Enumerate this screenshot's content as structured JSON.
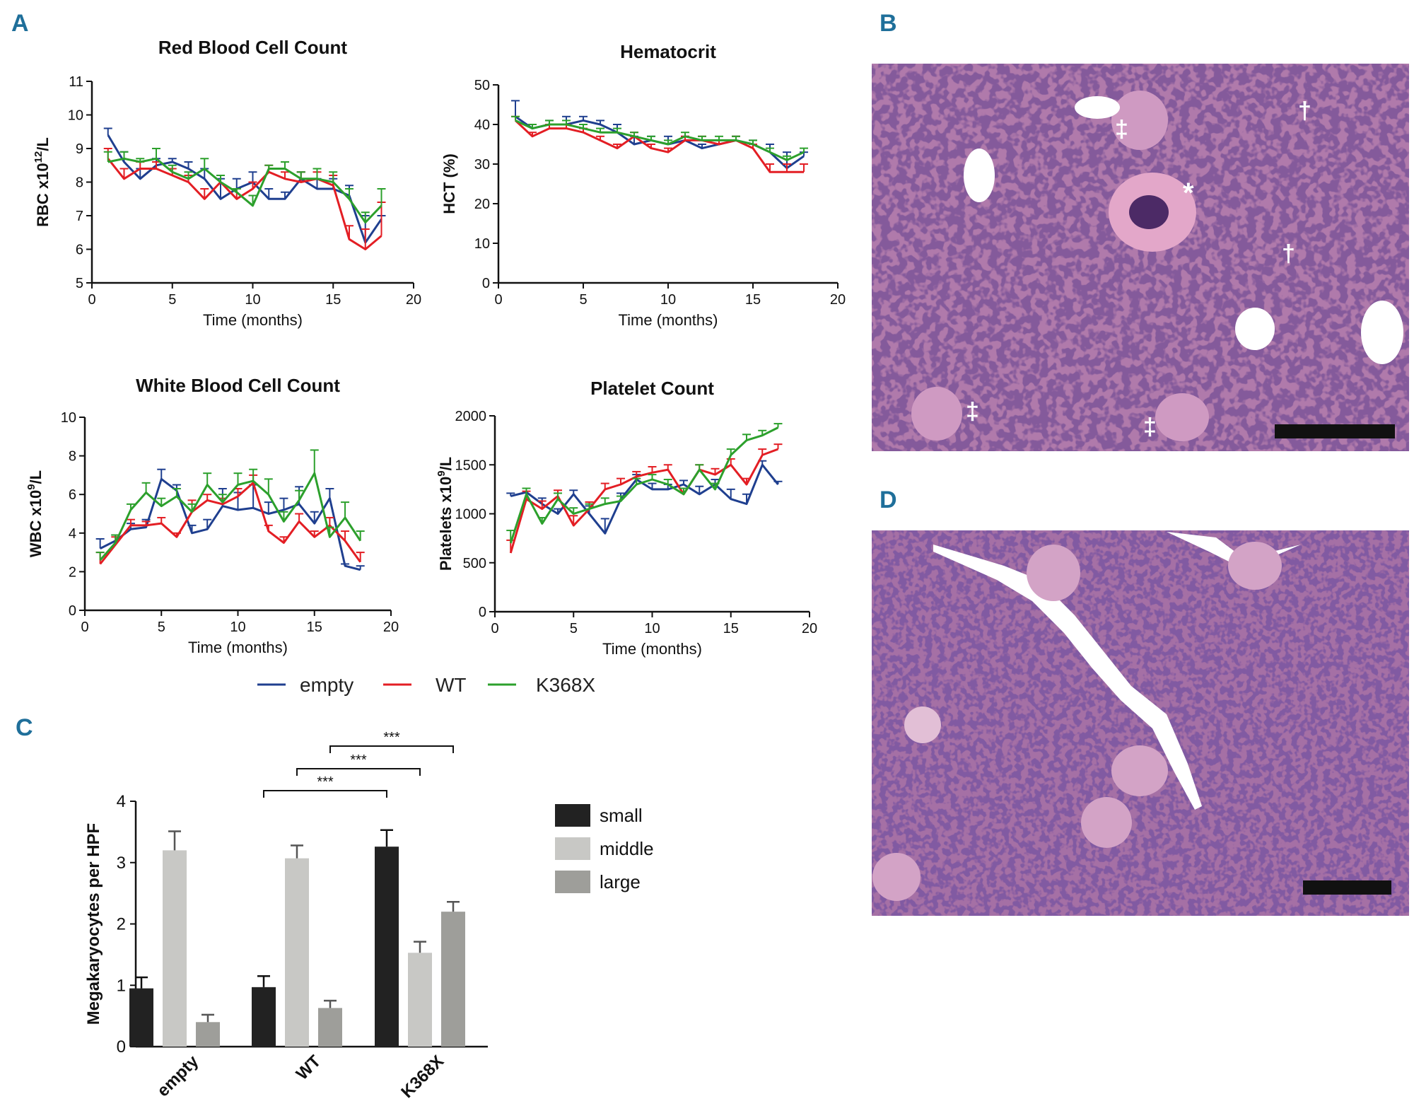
{
  "panel_letters": {
    "a": "A",
    "b": "B",
    "c": "C",
    "d": "D"
  },
  "colors": {
    "empty": "#1f3f8f",
    "wt": "#e31e24",
    "k368x": "#2ca02c",
    "small": "#222222",
    "middle": "#c8c8c5",
    "large": "#9e9e9a",
    "tissue_bg": "#b07aab",
    "tissue_cell": "#3b1a55"
  },
  "legend_lines": [
    {
      "label": "empty",
      "color": "#1f3f8f"
    },
    {
      "label": "WT",
      "color": "#e31e24"
    },
    {
      "label": "K368X",
      "color": "#2ca02c"
    }
  ],
  "chart_data": [
    {
      "id": "rbc",
      "type": "line",
      "title": "Red Blood Cell Count",
      "ylabel": "RBC x10",
      "ylabel_sup": "12",
      "ylabel_tail": "/L",
      "xlabel": "Time (months)",
      "xlim": [
        0,
        20
      ],
      "ylim": [
        5,
        11
      ],
      "xticks": [
        0,
        5,
        10,
        15,
        20
      ],
      "yticks": [
        5,
        6,
        7,
        8,
        9,
        10,
        11
      ],
      "x": [
        1,
        2,
        3,
        4,
        5,
        6,
        7,
        8,
        9,
        10,
        11,
        12,
        13,
        14,
        15,
        16,
        17,
        18
      ],
      "series": [
        {
          "name": "empty",
          "values": [
            9.4,
            8.6,
            8.1,
            8.5,
            8.6,
            8.4,
            8.1,
            7.5,
            7.8,
            8.0,
            7.5,
            7.5,
            8.1,
            7.8,
            7.8,
            7.6,
            6.2,
            6.9
          ],
          "err": [
            0.2,
            0.3,
            0.3,
            0.2,
            0.1,
            0.2,
            0.3,
            0.6,
            0.3,
            0.3,
            0.3,
            0.2,
            0.2,
            0.3,
            0.3,
            0.3,
            0.8,
            0.1
          ]
        },
        {
          "name": "WT",
          "values": [
            8.7,
            8.1,
            8.4,
            8.4,
            8.2,
            8.0,
            7.5,
            8.0,
            7.5,
            7.8,
            8.3,
            8.1,
            8.0,
            8.1,
            7.9,
            6.3,
            6.0,
            6.4
          ],
          "err": [
            0.3,
            0.3,
            0.2,
            0.2,
            0.2,
            0.2,
            0.3,
            0.2,
            0.3,
            0.2,
            0.2,
            0.2,
            0.3,
            0.2,
            0.3,
            0.4,
            0.6,
            1.0
          ]
        },
        {
          "name": "K368X",
          "values": [
            8.6,
            8.7,
            8.6,
            8.7,
            8.3,
            8.1,
            8.4,
            8.0,
            7.7,
            7.3,
            8.4,
            8.4,
            8.1,
            8.1,
            8.0,
            7.5,
            6.8,
            7.3
          ],
          "err": [
            0.3,
            0.2,
            0.1,
            0.3,
            0.2,
            0.2,
            0.3,
            0.2,
            0.1,
            0.3,
            0.1,
            0.2,
            0.2,
            0.3,
            0.3,
            0.3,
            0.3,
            0.5
          ]
        }
      ]
    },
    {
      "id": "hct",
      "type": "line",
      "title": "Hematocrit",
      "ylabel": "HCT (%)",
      "ylabel_sup": "",
      "ylabel_tail": "",
      "xlabel": "Time (months)",
      "xlim": [
        0,
        20
      ],
      "ylim": [
        0,
        50
      ],
      "xticks": [
        0,
        5,
        10,
        15,
        20
      ],
      "yticks": [
        0,
        10,
        20,
        30,
        40,
        50
      ],
      "x": [
        1,
        2,
        3,
        4,
        5,
        6,
        7,
        8,
        9,
        10,
        11,
        12,
        13,
        14,
        15,
        16,
        17,
        18
      ],
      "series": [
        {
          "name": "empty",
          "values": [
            42,
            39,
            40,
            40,
            41,
            40,
            38,
            35,
            36,
            35,
            36,
            34,
            35,
            36,
            35,
            33,
            29,
            32
          ],
          "err": [
            4,
            1,
            1,
            2,
            1,
            1,
            2,
            2,
            1,
            2,
            1,
            1,
            1,
            1,
            1,
            2,
            4,
            1
          ]
        },
        {
          "name": "WT",
          "values": [
            41,
            37,
            39,
            39,
            38,
            36,
            34,
            37,
            34,
            33,
            36,
            36,
            35,
            36,
            34,
            28,
            28,
            28
          ],
          "err": [
            1,
            1,
            1,
            1,
            1,
            1,
            1,
            1,
            1,
            1,
            1,
            1,
            1,
            1,
            1,
            2,
            2,
            2
          ]
        },
        {
          "name": "K368X",
          "values": [
            41,
            39,
            40,
            40,
            39,
            38,
            38,
            37,
            36,
            35,
            37,
            36,
            36,
            36,
            35,
            33,
            31,
            33
          ],
          "err": [
            1,
            1,
            1,
            1,
            1,
            1,
            1,
            1,
            1,
            1,
            1,
            1,
            1,
            1,
            1,
            1,
            1,
            1
          ]
        }
      ]
    },
    {
      "id": "wbc",
      "type": "line",
      "title": "White Blood Cell Count",
      "ylabel": "WBC x10",
      "ylabel_sup": "9",
      "ylabel_tail": "/L",
      "xlabel": "Time (months)",
      "xlim": [
        0,
        20
      ],
      "ylim": [
        0,
        10
      ],
      "xticks": [
        0,
        5,
        10,
        15,
        20
      ],
      "yticks": [
        0,
        2,
        4,
        6,
        8,
        10
      ],
      "x": [
        1,
        2,
        3,
        4,
        5,
        6,
        7,
        8,
        9,
        10,
        11,
        12,
        13,
        14,
        15,
        16,
        17,
        18
      ],
      "series": [
        {
          "name": "empty",
          "values": [
            3.2,
            3.6,
            4.2,
            4.3,
            6.8,
            6.2,
            4.0,
            4.2,
            5.4,
            5.2,
            5.3,
            5.0,
            5.2,
            5.5,
            4.5,
            5.8,
            2.3,
            2.1
          ],
          "err": [
            0.5,
            0.3,
            0.3,
            0.4,
            0.5,
            0.3,
            0.4,
            0.5,
            0.9,
            0.9,
            1.2,
            0.6,
            0.6,
            0.9,
            0.6,
            0.5,
            0.1,
            0.2
          ]
        },
        {
          "name": "WT",
          "values": [
            2.4,
            3.4,
            4.4,
            4.4,
            4.5,
            3.8,
            5.1,
            5.7,
            5.5,
            5.9,
            6.6,
            4.1,
            3.5,
            4.6,
            3.8,
            4.4,
            3.6,
            2.5
          ],
          "err": [
            0.6,
            0.4,
            0.3,
            0.2,
            0.3,
            0.2,
            0.6,
            0.3,
            0.3,
            0.4,
            0.4,
            0.3,
            0.3,
            0.4,
            0.3,
            0.4,
            0.5,
            0.5
          ]
        },
        {
          "name": "K368X",
          "values": [
            2.6,
            3.5,
            5.2,
            6.1,
            5.4,
            5.9,
            5.1,
            6.5,
            5.6,
            6.5,
            6.7,
            6.0,
            4.6,
            5.7,
            7.1,
            3.8,
            4.8,
            3.6
          ],
          "err": [
            0.4,
            0.4,
            0.3,
            0.5,
            0.4,
            0.4,
            0.4,
            0.6,
            0.4,
            0.6,
            0.6,
            0.8,
            0.5,
            0.5,
            1.2,
            0.5,
            0.8,
            0.5
          ]
        }
      ]
    },
    {
      "id": "plt",
      "type": "line",
      "title": "Platelet Count",
      "ylabel": "Platelets x10",
      "ylabel_sup": "9",
      "ylabel_tail": "/L",
      "xlabel": "Time (months)",
      "xlim": [
        0,
        20
      ],
      "ylim": [
        0,
        2000
      ],
      "xticks": [
        0,
        5,
        10,
        15,
        20
      ],
      "yticks": [
        0,
        500,
        1000,
        1500,
        2000
      ],
      "x": [
        1,
        2,
        3,
        4,
        5,
        6,
        7,
        8,
        9,
        10,
        11,
        12,
        13,
        14,
        15,
        16,
        17,
        18
      ],
      "series": [
        {
          "name": "empty",
          "values": [
            1180,
            1220,
            1100,
            1000,
            1200,
            1000,
            800,
            1150,
            1350,
            1250,
            1250,
            1300,
            1200,
            1300,
            1150,
            1100,
            1500,
            1300
          ],
          "err": [
            30,
            40,
            60,
            50,
            40,
            80,
            150,
            60,
            50,
            60,
            50,
            40,
            80,
            50,
            100,
            100,
            40,
            30
          ]
        },
        {
          "name": "WT",
          "values": [
            600,
            1150,
            1050,
            1180,
            880,
            1050,
            1250,
            1300,
            1380,
            1420,
            1450,
            1200,
            1450,
            1400,
            1500,
            1300,
            1600,
            1660
          ],
          "err": [
            130,
            80,
            80,
            60,
            100,
            70,
            60,
            60,
            50,
            60,
            50,
            60,
            50,
            60,
            60,
            60,
            60,
            50
          ]
        },
        {
          "name": "K368X",
          "values": [
            700,
            1200,
            900,
            1150,
            1000,
            1050,
            1100,
            1130,
            1300,
            1350,
            1300,
            1200,
            1450,
            1250,
            1600,
            1750,
            1800,
            1880
          ],
          "err": [
            130,
            60,
            60,
            60,
            60,
            50,
            60,
            50,
            60,
            50,
            50,
            60,
            50,
            60,
            60,
            60,
            50,
            40
          ]
        }
      ]
    },
    {
      "id": "mk",
      "type": "bar",
      "ylabel": "Megakaryocytes per HPF",
      "ylim": [
        0,
        4
      ],
      "yticks": [
        0,
        1,
        2,
        3,
        4
      ],
      "categories": [
        "empty",
        "WT",
        "K368X"
      ],
      "series": [
        {
          "name": "small",
          "values": [
            0.95,
            0.97,
            3.26
          ],
          "err": [
            0.18,
            0.18,
            0.27
          ]
        },
        {
          "name": "middle",
          "values": [
            3.2,
            3.07,
            1.53
          ],
          "err": [
            0.31,
            0.21,
            0.18
          ]
        },
        {
          "name": "large",
          "values": [
            0.4,
            0.63,
            2.2
          ],
          "err": [
            0.12,
            0.12,
            0.16
          ]
        }
      ],
      "significance": [
        {
          "label": "***",
          "from": "WT/small",
          "to": "K368X/small"
        },
        {
          "label": "***",
          "from": "WT/middle",
          "to": "K368X/middle"
        },
        {
          "label": "***",
          "from": "WT/large",
          "to": "K368X/large"
        }
      ]
    }
  ],
  "micrographs": [
    {
      "id": "B",
      "markers": [
        "‡",
        "†",
        "*",
        "†",
        "‡",
        "‡"
      ]
    },
    {
      "id": "D",
      "markers": []
    }
  ]
}
